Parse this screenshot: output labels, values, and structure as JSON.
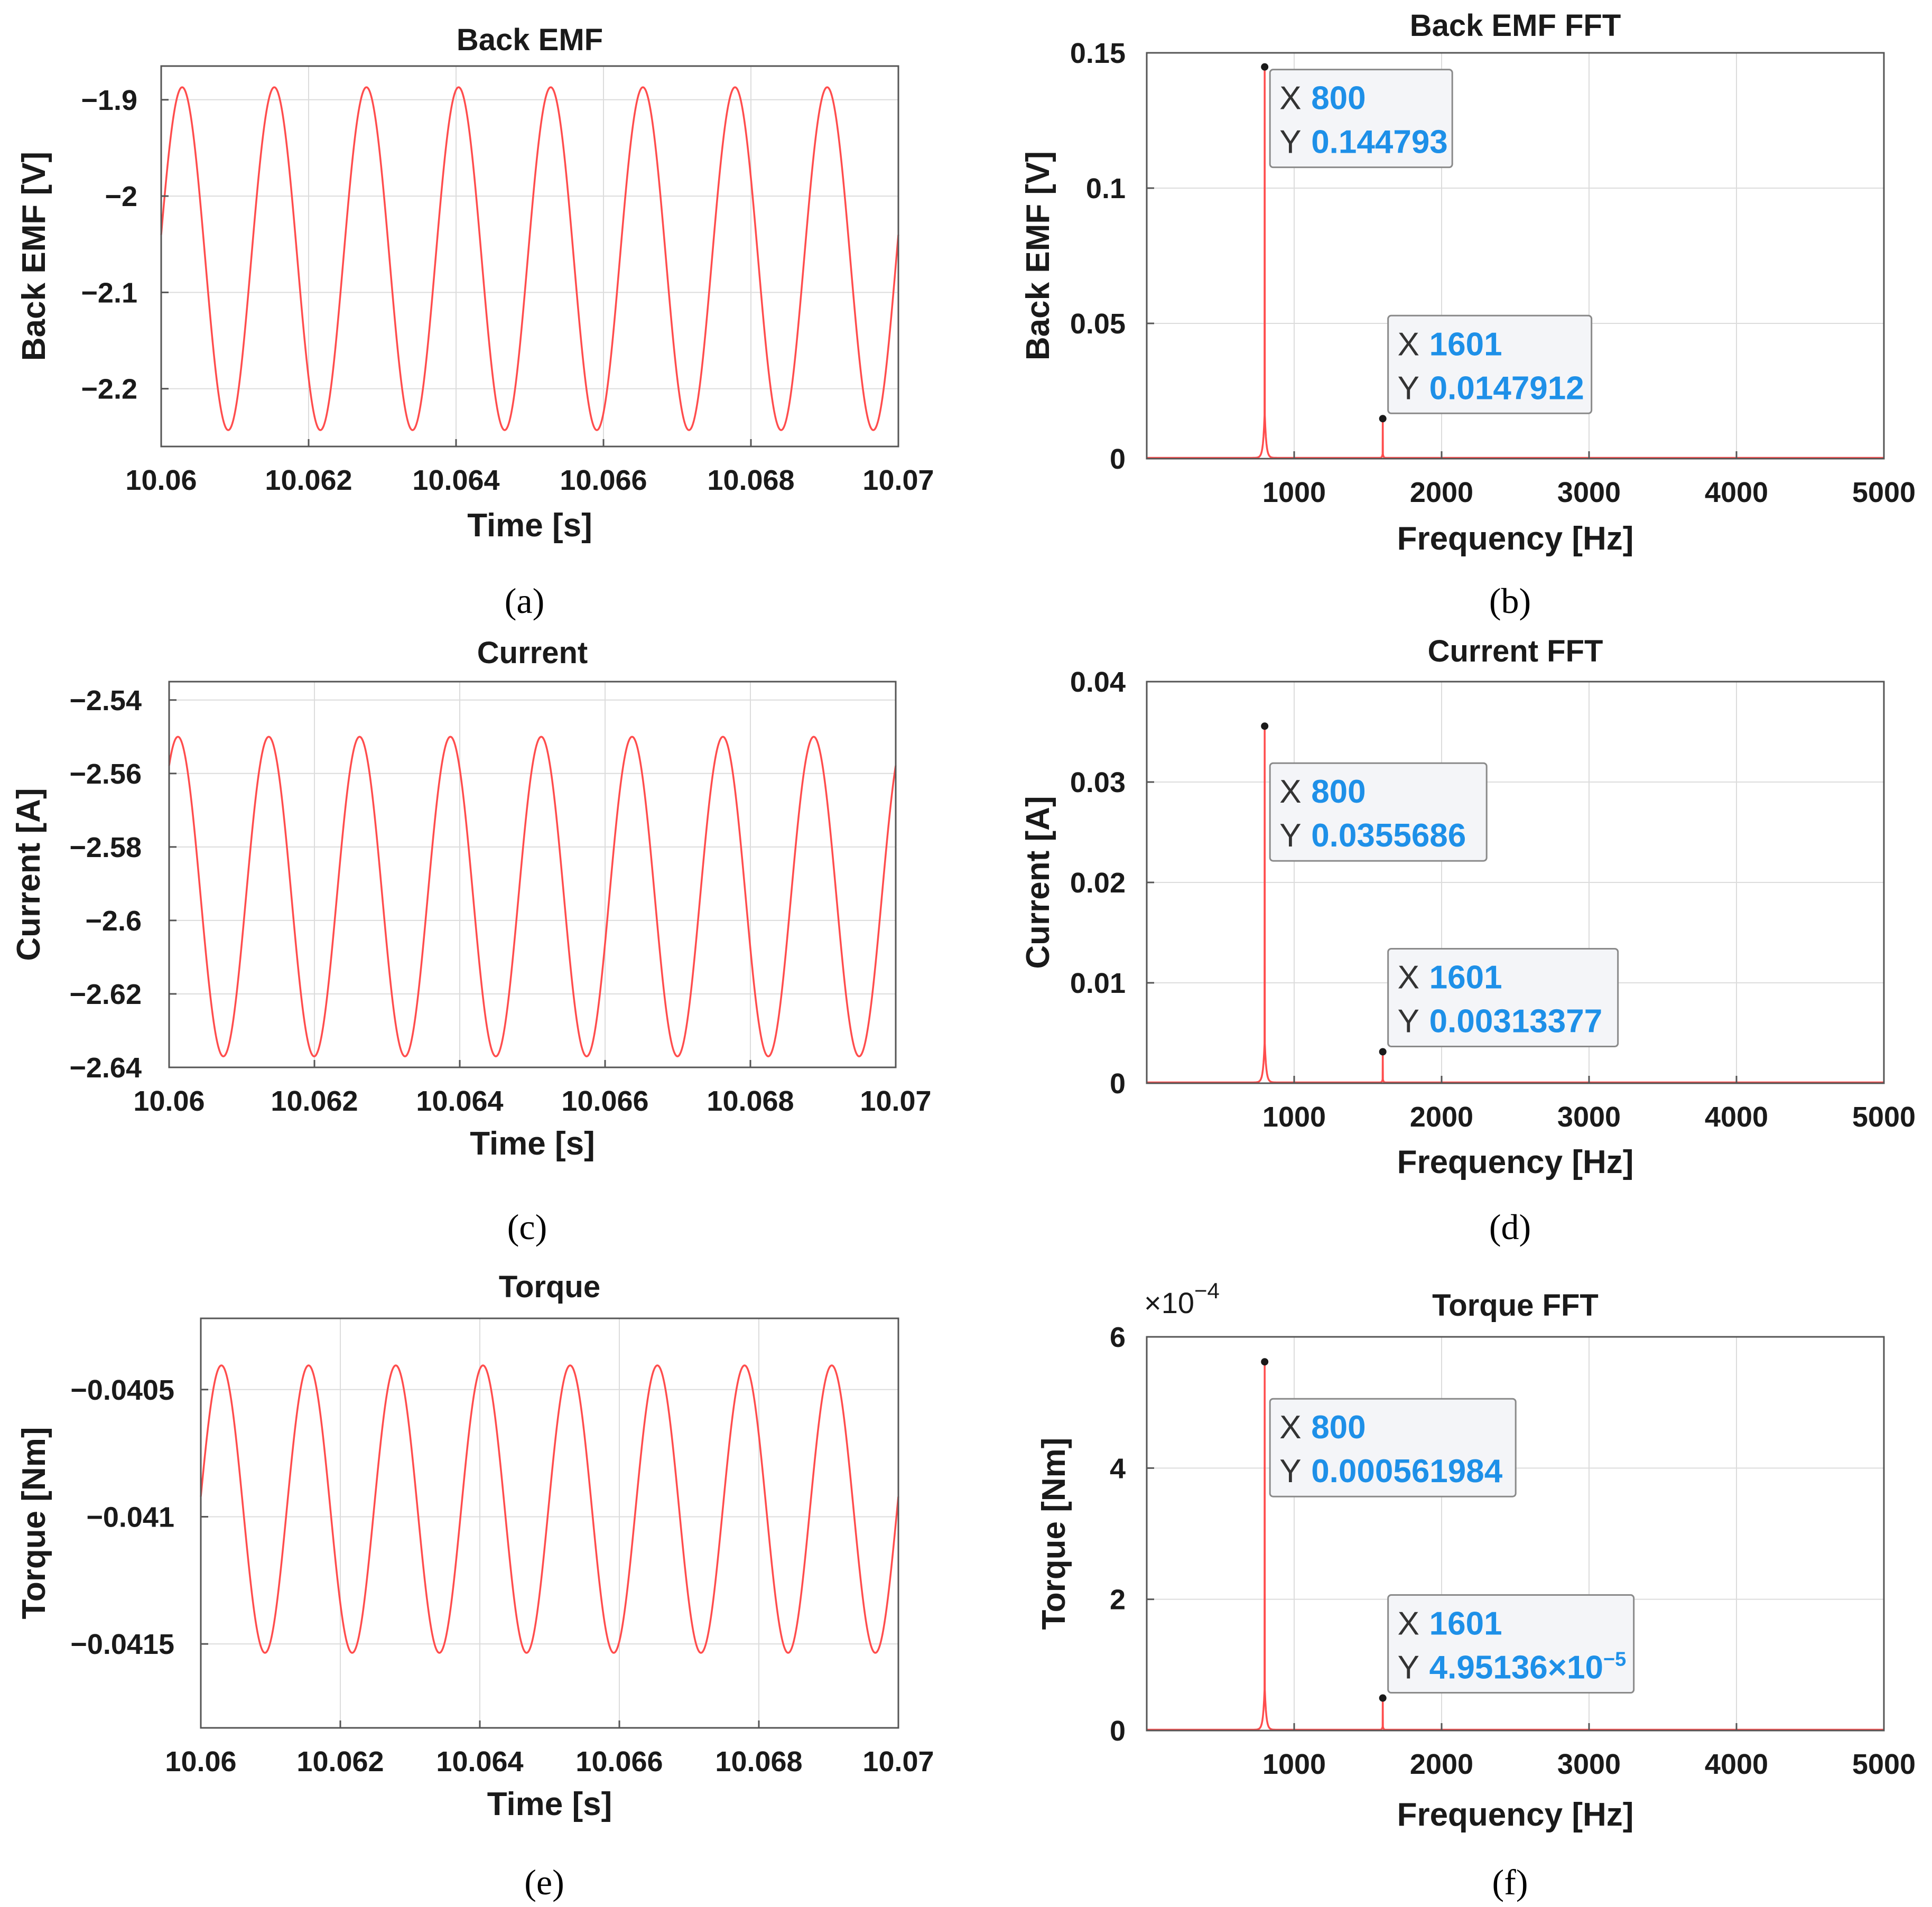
{
  "chart_data": [
    {
      "panel": "a",
      "type": "line",
      "title": "Back EMF",
      "xlabel": "Time [s]",
      "ylabel": "Back EMF [V]",
      "xlim": [
        10.06,
        10.07
      ],
      "ylim": [
        -2.26,
        -1.865
      ],
      "xticks": [
        10.06,
        10.062,
        10.064,
        10.066,
        10.068,
        10.07
      ],
      "xtick_labels": [
        "10.06",
        "10.062",
        "10.064",
        "10.066",
        "10.068",
        "10.07"
      ],
      "yticks": [
        -1.9,
        -2.0,
        -2.1,
        -2.2
      ],
      "ytick_labels": [
        "−1.9",
        "−2",
        "−2.1",
        "−2.2"
      ],
      "signal": {
        "frequency_hz": 800,
        "mean": -2.065,
        "amplitude": 0.178,
        "phase_deg": 8
      },
      "series": [
        {
          "name": "Back EMF",
          "color": "#ff4d4d"
        }
      ],
      "grid": true,
      "caption": "(a)"
    },
    {
      "panel": "b",
      "type": "line",
      "title": "Back EMF FFT",
      "xlabel": "Frequency [Hz]",
      "ylabel": "Back EMF [V]",
      "xlim": [
        0,
        5000
      ],
      "ylim": [
        0,
        0.15
      ],
      "xticks": [
        1000,
        2000,
        3000,
        4000,
        5000
      ],
      "xtick_labels": [
        "1000",
        "2000",
        "3000",
        "4000",
        "5000"
      ],
      "yticks": [
        0,
        0.05,
        0.1,
        0.15
      ],
      "ytick_labels": [
        "0",
        "0.05",
        "0.1",
        "0.15"
      ],
      "peaks": [
        {
          "x": 800,
          "y": 0.144793
        },
        {
          "x": 1601,
          "y": 0.0147912
        }
      ],
      "datatips": [
        {
          "x_label": "X",
          "x_value": "800",
          "y_label": "Y",
          "y_value": "0.144793"
        },
        {
          "x_label": "X",
          "x_value": "1601",
          "y_label": "Y",
          "y_value": "0.0147912"
        }
      ],
      "series": [
        {
          "name": "Back EMF FFT",
          "color": "#ff4d4d"
        }
      ],
      "grid": true,
      "caption": "(b)"
    },
    {
      "panel": "c",
      "type": "line",
      "title": "Current",
      "xlabel": "Time [s]",
      "ylabel": "Current [A]",
      "xlim": [
        10.06,
        10.07
      ],
      "ylim": [
        -2.64,
        -2.535
      ],
      "xticks": [
        10.06,
        10.062,
        10.064,
        10.066,
        10.068,
        10.07
      ],
      "xtick_labels": [
        "10.06",
        "10.062",
        "10.064",
        "10.066",
        "10.068",
        "10.07"
      ],
      "yticks": [
        -2.54,
        -2.56,
        -2.58,
        -2.6,
        -2.62,
        -2.64
      ],
      "ytick_labels": [
        "−2.54",
        "−2.56",
        "−2.58",
        "−2.6",
        "−2.62",
        "−2.64"
      ],
      "signal": {
        "frequency_hz": 800,
        "mean": -2.5935,
        "amplitude": 0.0435,
        "phase_deg": 55
      },
      "series": [
        {
          "name": "Current",
          "color": "#ff4d4d"
        }
      ],
      "grid": true,
      "caption": "(c)"
    },
    {
      "panel": "d",
      "type": "line",
      "title": "Current FFT",
      "xlabel": "Frequency [Hz]",
      "ylabel": "Current [A]",
      "xlim": [
        0,
        5000
      ],
      "ylim": [
        0,
        0.04
      ],
      "xticks": [
        1000,
        2000,
        3000,
        4000,
        5000
      ],
      "xtick_labels": [
        "1000",
        "2000",
        "3000",
        "4000",
        "5000"
      ],
      "yticks": [
        0,
        0.01,
        0.02,
        0.03,
        0.04
      ],
      "ytick_labels": [
        "0",
        "0.01",
        "0.02",
        "0.03",
        "0.04"
      ],
      "peaks": [
        {
          "x": 800,
          "y": 0.0355686
        },
        {
          "x": 1601,
          "y": 0.00313377
        }
      ],
      "datatips": [
        {
          "x_label": "X",
          "x_value": "800",
          "y_label": "Y",
          "y_value": "0.0355686"
        },
        {
          "x_label": "X",
          "x_value": "1601",
          "y_label": "Y",
          "y_value": "0.00313377"
        }
      ],
      "series": [
        {
          "name": "Current FFT",
          "color": "#ff4d4d"
        }
      ],
      "grid": true,
      "caption": "(d)"
    },
    {
      "panel": "e",
      "type": "line",
      "title": "Torque",
      "xlabel": "Time [s]",
      "ylabel": "Torque [Nm]",
      "xlim": [
        10.06,
        10.07
      ],
      "ylim": [
        -0.04183,
        -0.04022
      ],
      "xticks": [
        10.06,
        10.062,
        10.064,
        10.066,
        10.068,
        10.07
      ],
      "xtick_labels": [
        "10.06",
        "10.062",
        "10.064",
        "10.066",
        "10.068",
        "10.07"
      ],
      "yticks": [
        -0.0405,
        -0.041,
        -0.0415
      ],
      "ytick_labels": [
        "−0.0405",
        "−0.041",
        "−0.0415"
      ],
      "signal": {
        "frequency_hz": 800,
        "mean": -0.04097,
        "amplitude": 0.000565,
        "phase_deg": 5
      },
      "series": [
        {
          "name": "Torque",
          "color": "#ff4d4d"
        }
      ],
      "grid": true,
      "caption": "(e)"
    },
    {
      "panel": "f",
      "type": "line",
      "title": "Torque FFT",
      "xlabel": "Frequency [Hz]",
      "ylabel": "Torque [Nm]",
      "xlim": [
        0,
        5000
      ],
      "ylim": [
        0,
        6
      ],
      "y_multiplier": {
        "base": "×10",
        "exponent": "−4"
      },
      "xticks": [
        1000,
        2000,
        3000,
        4000,
        5000
      ],
      "xtick_labels": [
        "1000",
        "2000",
        "3000",
        "4000",
        "5000"
      ],
      "yticks": [
        0,
        2,
        4,
        6
      ],
      "ytick_labels": [
        "0",
        "2",
        "4",
        "6"
      ],
      "peaks": [
        {
          "x": 800,
          "y": 5.61984
        },
        {
          "x": 1601,
          "y": 0.495136
        }
      ],
      "datatips": [
        {
          "x_label": "X",
          "x_value": "800",
          "y_label": "Y",
          "y_value": "0.000561984"
        },
        {
          "x_label": "X",
          "x_value": "1601",
          "y_label": "Y",
          "y_value": "4.95136×10",
          "y_exponent": "−5"
        }
      ],
      "series": [
        {
          "name": "Torque FFT",
          "color": "#ff4d4d"
        }
      ],
      "grid": true,
      "caption": "(f)"
    }
  ]
}
